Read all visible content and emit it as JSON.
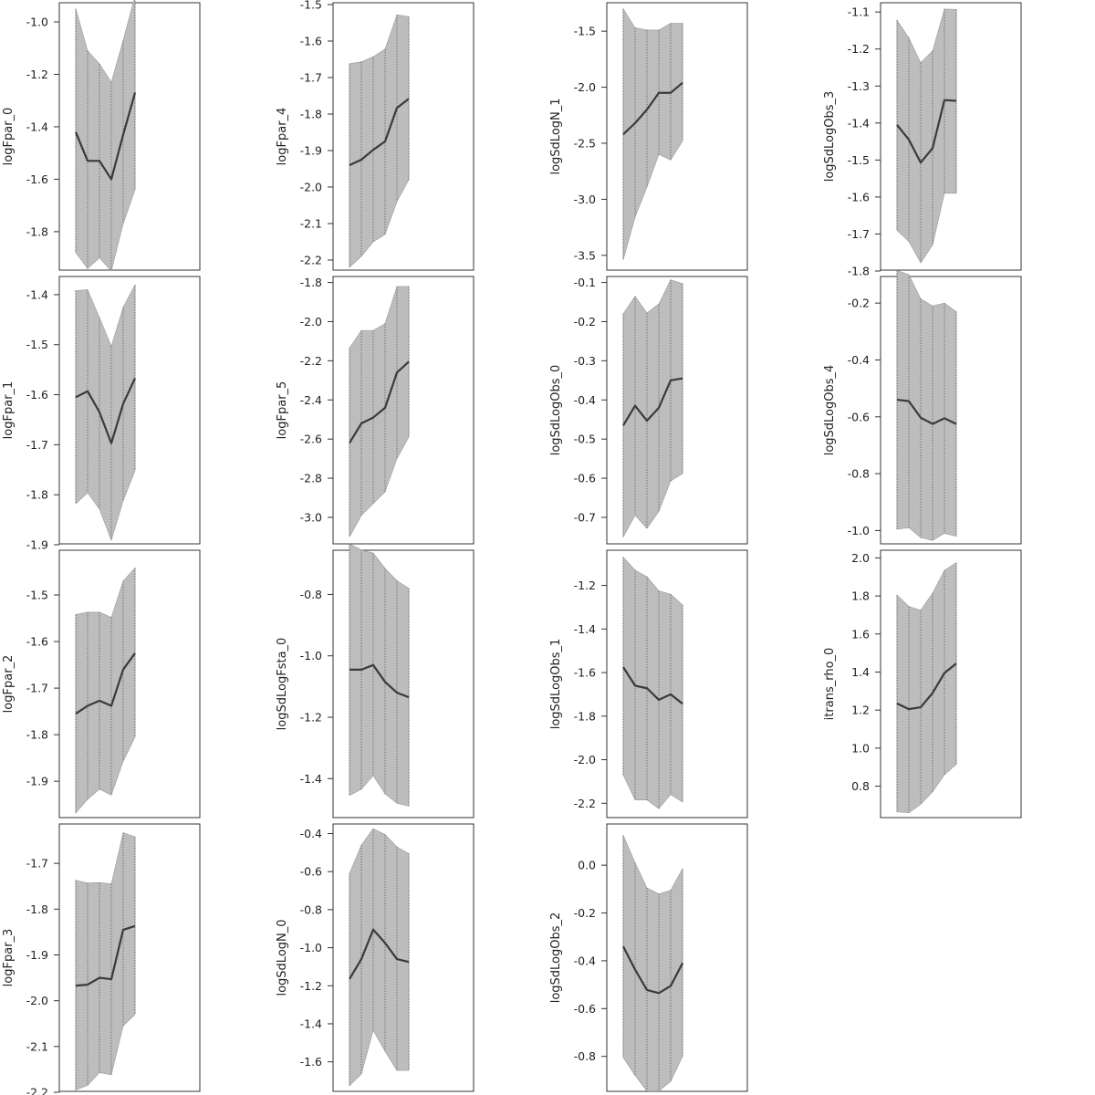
{
  "chart_data": [
    {
      "type": "line",
      "ylabel": "logFpar_0",
      "yticks": [
        -1.8,
        -1.6,
        -1.4,
        -1.2,
        -1.0
      ],
      "ylim": [
        -1.95,
        -0.92
      ],
      "x": [
        1,
        2,
        3,
        4,
        5,
        6
      ],
      "mean": [
        -1.42,
        -1.53,
        -1.53,
        -1.6,
        -1.43,
        -1.27
      ],
      "upper": [
        -0.95,
        -1.11,
        -1.16,
        -1.23,
        -1.07,
        -0.9
      ],
      "lower": [
        -1.88,
        -1.94,
        -1.9,
        -1.95,
        -1.77,
        -1.64
      ]
    },
    {
      "type": "line",
      "ylabel": "logFpar_1",
      "yticks": [
        -1.9,
        -1.8,
        -1.7,
        -1.6,
        -1.5,
        -1.4
      ],
      "ylim": [
        -1.9,
        -1.36
      ],
      "x": [
        1,
        2,
        3,
        4,
        5,
        6
      ],
      "mean": [
        -1.605,
        -1.593,
        -1.635,
        -1.697,
        -1.618,
        -1.567
      ],
      "upper": [
        -1.392,
        -1.39,
        -1.446,
        -1.503,
        -1.425,
        -1.38
      ],
      "lower": [
        -1.818,
        -1.796,
        -1.829,
        -1.891,
        -1.812,
        -1.752
      ]
    },
    {
      "type": "line",
      "ylabel": "logFpar_2",
      "yticks": [
        -1.9,
        -1.8,
        -1.7,
        -1.6,
        -1.5
      ],
      "ylim": [
        -1.98,
        -1.4
      ],
      "x": [
        1,
        2,
        3,
        4,
        5,
        6
      ],
      "mean": [
        -1.755,
        -1.738,
        -1.727,
        -1.738,
        -1.66,
        -1.625
      ],
      "upper": [
        -1.542,
        -1.537,
        -1.537,
        -1.548,
        -1.47,
        -1.442
      ],
      "lower": [
        -1.968,
        -1.939,
        -1.917,
        -1.93,
        -1.857,
        -1.805
      ]
    },
    {
      "type": "line",
      "ylabel": "logFpar_3",
      "yticks": [
        -2.2,
        -2.1,
        -2.0,
        -1.9,
        -1.8,
        -1.7
      ],
      "ylim": [
        -2.2,
        -1.61
      ],
      "x": [
        1,
        2,
        3,
        4,
        5,
        6
      ],
      "mean": [
        -1.967,
        -1.965,
        -1.95,
        -1.953,
        -1.845,
        -1.837
      ],
      "upper": [
        -1.737,
        -1.743,
        -1.742,
        -1.745,
        -1.633,
        -1.642
      ],
      "lower": [
        -2.195,
        -2.185,
        -2.157,
        -2.162,
        -2.055,
        -2.03
      ]
    },
    {
      "type": "line",
      "ylabel": "logFpar_4",
      "yticks": [
        -2.2,
        -2.1,
        -2.0,
        -1.9,
        -1.8,
        -1.7,
        -1.6,
        -1.5
      ],
      "ylim": [
        -2.23,
        -1.49
      ],
      "x": [
        1,
        2,
        3,
        4,
        5,
        6
      ],
      "mean": [
        -1.94,
        -1.925,
        -1.898,
        -1.875,
        -1.783,
        -1.758
      ],
      "upper": [
        -1.662,
        -1.657,
        -1.643,
        -1.622,
        -1.528,
        -1.533
      ],
      "lower": [
        -2.22,
        -2.19,
        -2.15,
        -2.13,
        -2.04,
        -1.98
      ]
    },
    {
      "type": "line",
      "ylabel": "logFpar_5",
      "yticks": [
        -3.0,
        -2.8,
        -2.6,
        -2.4,
        -2.2,
        -2.0,
        -1.8
      ],
      "ylim": [
        -3.14,
        -1.76
      ],
      "x": [
        1,
        2,
        3,
        4,
        5,
        6
      ],
      "mean": [
        -2.62,
        -2.52,
        -2.49,
        -2.44,
        -2.26,
        -2.205
      ],
      "upper": [
        -2.135,
        -2.045,
        -2.045,
        -2.01,
        -1.82,
        -1.82
      ],
      "lower": [
        -3.1,
        -2.99,
        -2.93,
        -2.87,
        -2.7,
        -2.59
      ]
    },
    {
      "type": "line",
      "ylabel": "logSdLogFsta_0",
      "yticks": [
        -1.4,
        -1.2,
        -1.0,
        -0.8
      ],
      "ylim": [
        -1.53,
        -0.65
      ],
      "x": [
        1,
        2,
        3,
        4,
        5,
        6
      ],
      "mean": [
        -1.045,
        -1.045,
        -1.03,
        -1.085,
        -1.12,
        -1.135
      ],
      "upper": [
        -0.635,
        -0.655,
        -0.665,
        -0.715,
        -0.755,
        -0.78
      ],
      "lower": [
        -1.455,
        -1.435,
        -1.39,
        -1.45,
        -1.48,
        -1.49
      ]
    },
    {
      "type": "line",
      "ylabel": "logSdLogN_0",
      "yticks": [
        -1.6,
        -1.4,
        -1.2,
        -1.0,
        -0.8,
        -0.6,
        -0.4
      ],
      "ylim": [
        -1.76,
        -0.34
      ],
      "x": [
        1,
        2,
        3,
        4,
        5,
        6
      ],
      "mean": [
        -1.165,
        -1.06,
        -0.905,
        -0.975,
        -1.06,
        -1.075
      ],
      "upper": [
        -0.61,
        -0.46,
        -0.375,
        -0.405,
        -0.47,
        -0.505
      ],
      "lower": [
        -1.725,
        -1.665,
        -1.435,
        -1.545,
        -1.645,
        -1.645
      ]
    },
    {
      "type": "line",
      "ylabel": "logSdLogN_1",
      "yticks": [
        -3.5,
        -3.0,
        -2.5,
        -2.0,
        -1.5
      ],
      "ylim": [
        -3.64,
        -1.23
      ],
      "x": [
        1,
        2,
        3,
        4,
        5,
        6
      ],
      "mean": [
        -2.42,
        -2.32,
        -2.2,
        -2.05,
        -2.05,
        -1.96
      ],
      "upper": [
        -1.3,
        -1.47,
        -1.49,
        -1.49,
        -1.43,
        -1.43
      ],
      "lower": [
        -3.54,
        -3.16,
        -2.89,
        -2.6,
        -2.65,
        -2.48
      ]
    },
    {
      "type": "line",
      "ylabel": "logSdLogObs_0",
      "yticks": [
        -0.7,
        -0.6,
        -0.5,
        -0.4,
        -0.3,
        -0.2,
        -0.1
      ],
      "ylim": [
        -0.77,
        -0.08
      ],
      "x": [
        1,
        2,
        3,
        4,
        5,
        6
      ],
      "mean": [
        -0.465,
        -0.415,
        -0.453,
        -0.42,
        -0.35,
        -0.345
      ],
      "upper": [
        -0.18,
        -0.135,
        -0.178,
        -0.155,
        -0.093,
        -0.103
      ],
      "lower": [
        -0.75,
        -0.695,
        -0.728,
        -0.685,
        -0.607,
        -0.588
      ]
    },
    {
      "type": "line",
      "ylabel": "logSdLogObs_1",
      "yticks": [
        -2.2,
        -2.0,
        -1.8,
        -1.6,
        -1.4,
        -1.2
      ],
      "ylim": [
        -2.27,
        -1.03
      ],
      "x": [
        1,
        2,
        3,
        4,
        5,
        6
      ],
      "mean": [
        -1.575,
        -1.66,
        -1.672,
        -1.725,
        -1.7,
        -1.743
      ],
      "upper": [
        -1.07,
        -1.13,
        -1.16,
        -1.225,
        -1.24,
        -1.29
      ],
      "lower": [
        -2.07,
        -2.185,
        -2.185,
        -2.225,
        -2.16,
        -2.195
      ]
    },
    {
      "type": "line",
      "ylabel": "logSdLogObs_2",
      "yticks": [
        -0.8,
        -0.6,
        -0.4,
        -0.2,
        0.0
      ],
      "ylim": [
        -0.95,
        0.18
      ],
      "x": [
        1,
        2,
        3,
        4,
        5,
        6
      ],
      "mean": [
        -0.34,
        -0.437,
        -0.522,
        -0.535,
        -0.505,
        -0.41
      ],
      "upper": [
        0.125,
        0.01,
        -0.095,
        -0.12,
        -0.105,
        -0.015
      ],
      "lower": [
        -0.805,
        -0.88,
        -0.945,
        -0.945,
        -0.905,
        -0.8
      ]
    },
    {
      "type": "line",
      "ylabel": "logSdLogObs_3",
      "yticks": [
        -1.8,
        -1.7,
        -1.6,
        -1.5,
        -1.4,
        -1.3,
        -1.2,
        -1.1
      ],
      "ylim": [
        -1.8,
        -1.07
      ],
      "x": [
        1,
        2,
        3,
        4,
        5,
        6
      ],
      "mean": [
        -1.405,
        -1.445,
        -1.507,
        -1.468,
        -1.338,
        -1.34
      ],
      "upper": [
        -1.122,
        -1.17,
        -1.237,
        -1.205,
        -1.092,
        -1.093
      ],
      "lower": [
        -1.69,
        -1.72,
        -1.778,
        -1.73,
        -1.59,
        -1.59
      ]
    },
    {
      "type": "line",
      "ylabel": "logSdLogObs_4",
      "yticks": [
        -1.0,
        -0.8,
        -0.6,
        -0.4,
        -0.2
      ],
      "ylim": [
        -1.05,
        -0.1
      ],
      "x": [
        1,
        2,
        3,
        4,
        5,
        6
      ],
      "mean": [
        -0.54,
        -0.545,
        -0.603,
        -0.625,
        -0.605,
        -0.625
      ],
      "upper": [
        -0.085,
        -0.1,
        -0.185,
        -0.21,
        -0.2,
        -0.23
      ],
      "lower": [
        -0.995,
        -0.99,
        -1.025,
        -1.035,
        -1.01,
        -1.02
      ]
    },
    {
      "type": "line",
      "ylabel": "itrans_rho_0",
      "yticks": [
        0.8,
        1.0,
        1.2,
        1.4,
        1.6,
        1.8,
        2.0
      ],
      "ylim": [
        0.63,
        2.05
      ],
      "x": [
        1,
        2,
        3,
        4,
        5,
        6
      ],
      "mean": [
        1.235,
        1.205,
        1.215,
        1.29,
        1.395,
        1.445
      ],
      "upper": [
        1.805,
        1.745,
        1.725,
        1.815,
        1.935,
        1.975
      ],
      "lower": [
        0.665,
        0.66,
        0.705,
        0.77,
        0.86,
        0.915
      ]
    }
  ]
}
